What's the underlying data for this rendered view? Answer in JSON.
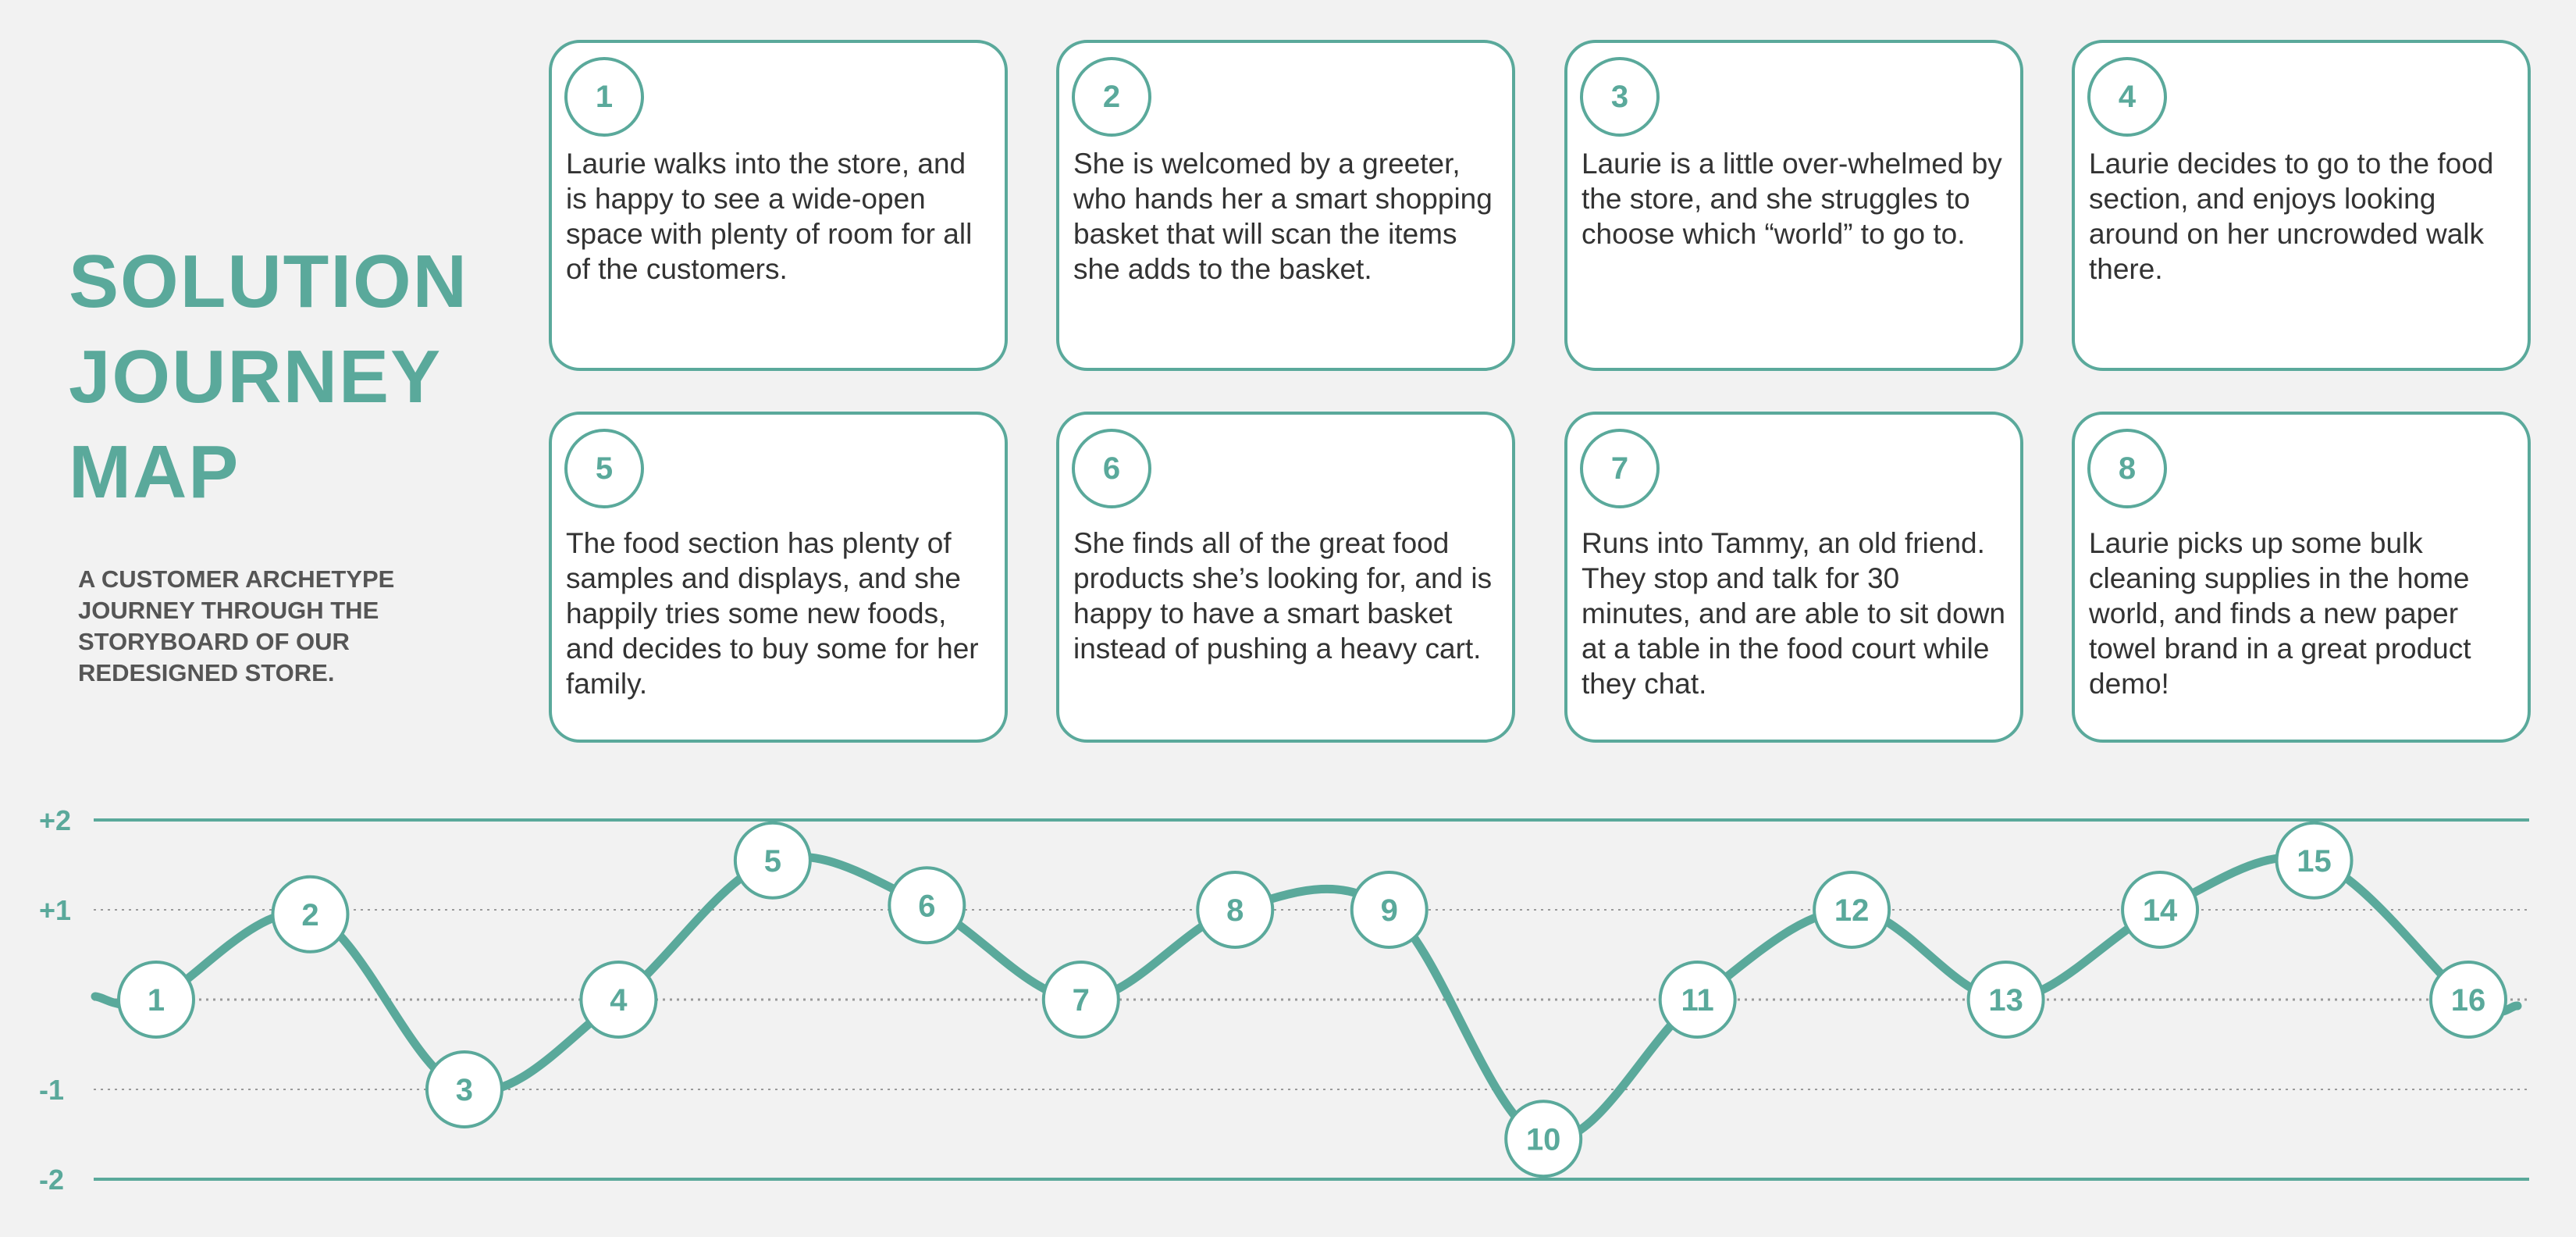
{
  "title_lines": [
    "SOLUTION",
    "JOURNEY",
    "MAP"
  ],
  "subtitle": "A CUSTOMER ARCHETYPE JOURNEY THROUGH THE STORYBOARD OF OUR REDESIGNED STORE.",
  "colors": {
    "accent": "#5aa99b",
    "text": "#333333",
    "subtitle": "#555555",
    "background": "#f2f2f2"
  },
  "cards": [
    {
      "number": "1",
      "text": "Laurie walks into the store, and is happy to see a wide-open space with plenty of room for all of the customers."
    },
    {
      "number": "2",
      "text": "She is welcomed by a greeter, who hands her a smart shopping basket that will scan the items she adds to the basket."
    },
    {
      "number": "3",
      "text": "Laurie is a little over-whelmed by the store, and she struggles to choose which “world” to go to."
    },
    {
      "number": "4",
      "text": "Laurie decides to go to the food section, and enjoys looking around on her uncrowded walk there."
    },
    {
      "number": "5",
      "text": "The food section has plenty of samples and displays, and she happily tries some new foods, and decides to buy some for her family."
    },
    {
      "number": "6",
      "text": "She finds all of the great food products she’s looking for, and is happy to have a smart basket instead of pushing a heavy cart."
    },
    {
      "number": "7",
      "text": "Runs into Tammy, an old friend. They stop and talk for 30 minutes, and are able to sit down at a table in the food court while they chat."
    },
    {
      "number": "8",
      "text": "Laurie picks up some bulk cleaning supplies in the home world, and finds a new paper towel brand in a great product demo!"
    }
  ],
  "journey": {
    "y_axis_labels": [
      "+2",
      "+1",
      "-1",
      "-2"
    ],
    "y_range": [
      -2,
      2
    ],
    "points": [
      {
        "label": "1",
        "value": 0.0
      },
      {
        "label": "2",
        "value": 0.95
      },
      {
        "label": "3",
        "value": -1.0
      },
      {
        "label": "4",
        "value": 0.0
      },
      {
        "label": "5",
        "value": 1.55
      },
      {
        "label": "6",
        "value": 1.05
      },
      {
        "label": "7",
        "value": 0.0
      },
      {
        "label": "8",
        "value": 1.0
      },
      {
        "label": "9",
        "value": 1.0
      },
      {
        "label": "10",
        "value": -1.55
      },
      {
        "label": "11",
        "value": 0.0
      },
      {
        "label": "12",
        "value": 1.0
      },
      {
        "label": "13",
        "value": 0.0
      },
      {
        "label": "14",
        "value": 1.0
      },
      {
        "label": "15",
        "value": 1.55
      },
      {
        "label": "16",
        "value": 0.0
      }
    ]
  }
}
